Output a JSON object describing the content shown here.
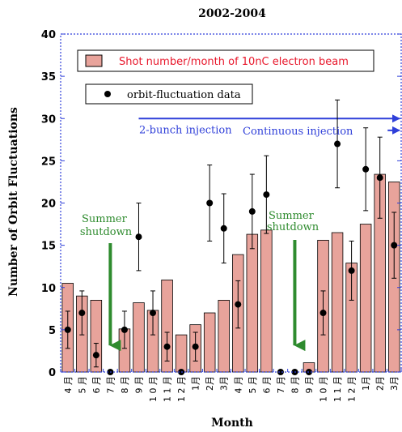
{
  "chart_data": {
    "type": "bar",
    "title": "2002-2004",
    "xlabel": "Month",
    "ylabel": "Number of Orbit Fluctuations",
    "ylim": [
      0,
      40
    ],
    "yticks": [
      0,
      5,
      10,
      15,
      20,
      25,
      30,
      35,
      40
    ],
    "categories": [
      "4月",
      "5月",
      "6月",
      "7月",
      "8月",
      "9月",
      "10月",
      "11月",
      "12月",
      "1月",
      "2月",
      "3月",
      "4月",
      "5月",
      "6月",
      "7月",
      "8月",
      "9月",
      "10月",
      "11月",
      "12月",
      "1月",
      "2月",
      "3月"
    ],
    "category_labels": [
      "4 月",
      "5 月",
      "6 月",
      "7 月",
      "8 月",
      "9 月",
      "1 0 月",
      "1 1 月",
      "1 2 月",
      "1月",
      "2月",
      "3月",
      "4 月",
      "5 月",
      "6 月",
      "7 月",
      "8 月",
      "9 月",
      "1 0 月",
      "1 1 月",
      "1 2 月",
      "1月",
      "2月",
      "3月"
    ],
    "grid": false,
    "legend": "top-left",
    "series": [
      {
        "name": "Shot number/month of 10nC electron beam",
        "kind": "bar",
        "color": "#e8a39b",
        "values": [
          10.5,
          9.0,
          8.5,
          0,
          5.1,
          8.2,
          7.3,
          10.9,
          4.4,
          5.6,
          7.0,
          8.5,
          13.9,
          16.3,
          16.8,
          0,
          0,
          1.1,
          15.6,
          16.5,
          12.9,
          17.5,
          23.4,
          22.5
        ]
      },
      {
        "name": "orbit-fluctuation data",
        "kind": "scatter",
        "color": "#000000",
        "values": [
          5,
          7,
          2,
          0,
          5,
          16,
          7,
          3,
          0,
          3,
          20,
          17,
          8,
          19,
          21,
          0,
          0,
          0,
          7,
          27,
          12,
          24,
          23,
          15
        ],
        "error": [
          2.2,
          2.6,
          1.4,
          0,
          2.2,
          4.0,
          2.6,
          1.7,
          0,
          1.7,
          4.5,
          4.1,
          2.8,
          4.4,
          4.6,
          0,
          0,
          0,
          2.6,
          5.2,
          3.5,
          4.9,
          4.8,
          3.9
        ]
      }
    ],
    "annotations": [
      {
        "id": "summer-1",
        "lines": [
          "Summer",
          "shutdown"
        ],
        "color": "#2e8b2e",
        "at_category": 3
      },
      {
        "id": "summer-2",
        "lines": [
          "Summer",
          "shutdown"
        ],
        "color": "#2e8b2e",
        "at_category": 16
      },
      {
        "id": "two-bunch",
        "text": "2-bunch injection",
        "color": "#2f3fd9",
        "arrow_from_category": 5,
        "y": 30
      },
      {
        "id": "continuous",
        "text": "Continuous injection",
        "color": "#2f3fd9",
        "arrow_from_category": 23,
        "y": 28.6
      }
    ]
  }
}
